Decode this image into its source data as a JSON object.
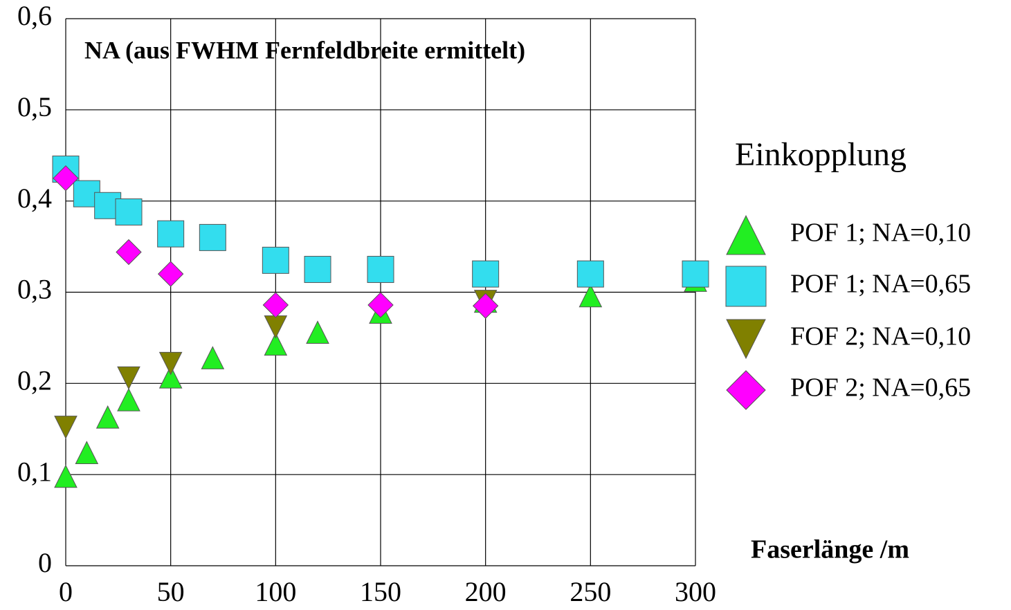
{
  "chart_data": {
    "type": "scatter",
    "title": "NA (aus FWHM Fernfeldbreite ermittelt)",
    "x_label": "Faserlänge  /m",
    "legend_title": "Einkopplung",
    "xlim": [
      0,
      300
    ],
    "xticks": [
      0,
      50,
      100,
      150,
      200,
      250,
      300
    ],
    "ylim": [
      0,
      0.6
    ],
    "yticks": [
      0,
      {
        "value": 0.1,
        "label": "0,1"
      },
      {
        "value": 0.2,
        "label": "0,2"
      },
      {
        "value": 0.3,
        "label": "0,3"
      },
      {
        "value": 0.4,
        "label": "0,4"
      },
      {
        "value": 0.5,
        "label": "0,5"
      },
      {
        "value": 0.6,
        "label": "0,6"
      }
    ],
    "grid": true,
    "legend": "right",
    "series": [
      {
        "name": "POF 1; NA=0,10",
        "marker": "triangle",
        "color": "#22ee22",
        "legend_color": "#1a9a1a",
        "x": [
          0,
          10,
          20,
          30,
          50,
          70,
          100,
          120,
          150,
          200,
          250,
          300
        ],
        "values": [
          0.098,
          0.124,
          0.163,
          0.182,
          0.207,
          0.228,
          0.243,
          0.256,
          0.278,
          0.29,
          0.296,
          0.313
        ]
      },
      {
        "name": "POF 1; NA=0,65",
        "marker": "square",
        "color": "#33ddee",
        "legend_color": "#4a4ae8",
        "x": [
          0,
          10,
          20,
          30,
          50,
          70,
          100,
          120,
          150,
          200,
          250,
          300
        ],
        "values": [
          0.435,
          0.408,
          0.395,
          0.388,
          0.364,
          0.36,
          0.335,
          0.325,
          0.325,
          0.32,
          0.32,
          0.32
        ]
      },
      {
        "name": "FOF 2; NA=0,10",
        "marker": "triangle-down",
        "color": "#808000",
        "legend_color": "#f4a460",
        "x": [
          0,
          30,
          50,
          100,
          200
        ],
        "values": [
          0.152,
          0.206,
          0.222,
          0.262,
          0.29
        ]
      },
      {
        "name": "POF 2; NA=0,65",
        "marker": "diamond",
        "color": "#ff00ff",
        "legend_color": "#f08080",
        "x": [
          0,
          30,
          50,
          100,
          150,
          200
        ],
        "values": [
          0.425,
          0.344,
          0.32,
          0.286,
          0.286,
          0.285
        ]
      }
    ]
  }
}
